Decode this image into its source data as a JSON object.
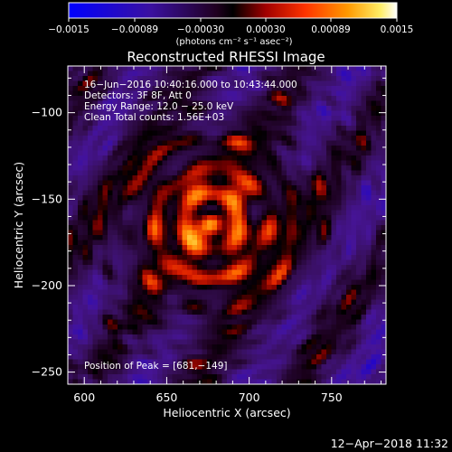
{
  "chart_data": {
    "type": "heatmap",
    "title": "Reconstructed RHESSI Image",
    "xlabel": "Heliocentric X (arcsec)",
    "ylabel": "Heliocentric Y (arcsec)",
    "xlim": [
      590,
      783
    ],
    "ylim": [
      -257,
      -73
    ],
    "xticks": [
      600,
      650,
      700,
      750
    ],
    "yticks": [
      -100,
      -150,
      -200,
      -250
    ],
    "colorbar": {
      "label": "(photons cm⁻² s⁻¹ asec⁻²)",
      "range": [
        -0.0015,
        0.0015
      ],
      "ticks": [
        "−0.0015",
        "−0.00089",
        "−0.00030",
        "0.00030",
        "0.00089",
        "0.0015"
      ]
    },
    "annotations": [
      "16−Jun−2016 10:40:16.000 to 10:43:44.000",
      "Detectors: 3F 8F, Att 0",
      "Energy Range: 12.0 − 25.0 keV",
      "Clean    Total counts: 1.56E+03"
    ],
    "peak": "Position of Peak = [681,−149]",
    "peak_xy": [
      681,
      -149
    ],
    "timestamp": "12−Apr−2018 11:32"
  },
  "colors": {
    "background": "#000000",
    "foreground": "#ffffff",
    "colormap": [
      "#0000ff",
      "#2a00a0",
      "#3a1070",
      "#000000",
      "#b00000",
      "#ff3300",
      "#ff9900",
      "#ffee66",
      "#ffffff"
    ]
  }
}
